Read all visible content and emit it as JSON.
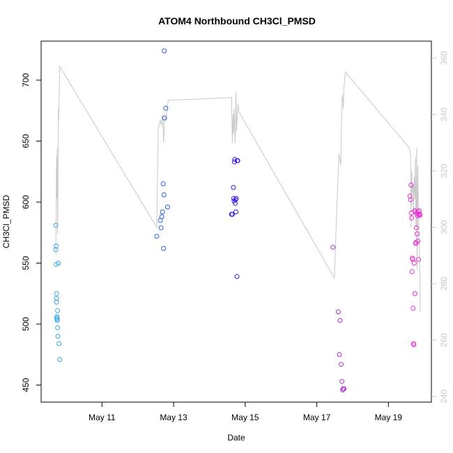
{
  "chart_data": {
    "type": "scatter",
    "title": "ATOM4 Northbound CH3Cl_PMSD",
    "xlabel": "Date",
    "ylabel": "CH3Cl_PMSD",
    "x_unit": "days (May of one year)",
    "xlim": [
      9.3,
      20.2
    ],
    "ylim": [
      436,
      732
    ],
    "y2lim": [
      238,
      366
    ],
    "x_ticks": [
      {
        "value": 11,
        "label": "May 11"
      },
      {
        "value": 13,
        "label": "May 13"
      },
      {
        "value": 15,
        "label": "May 15"
      },
      {
        "value": 17,
        "label": "May 17"
      },
      {
        "value": 19,
        "label": "May 19"
      }
    ],
    "y_ticks": [
      450,
      500,
      550,
      600,
      650,
      700
    ],
    "y2_ticks": [
      240,
      260,
      280,
      300,
      320,
      340,
      360
    ],
    "colors": {
      "line": "#c8c8c8",
      "group1": "#33a8e8",
      "group2": "#2a5fe0",
      "group3": "#3b10e6",
      "group4": "#b02ad8",
      "group5": "#ea2ad6",
      "frame": "#000000"
    },
    "series": [
      {
        "name": "altitude-trace",
        "axis": "right",
        "kind": "line",
        "x": [
          9.71,
          9.73,
          9.74,
          9.75,
          9.76,
          9.77,
          9.78,
          9.79,
          9.82,
          12.53,
          12.57,
          12.63,
          12.66,
          12.69,
          12.72,
          12.75,
          12.78,
          12.85,
          14.62,
          14.64,
          14.66,
          14.67,
          14.69,
          14.7,
          14.72,
          14.74,
          14.76,
          14.79,
          14.8,
          14.82,
          17.49,
          17.56,
          17.62,
          17.67,
          17.7,
          17.72,
          17.74,
          17.76,
          17.8,
          19.59,
          19.62,
          19.63,
          19.65,
          19.67,
          19.69,
          19.7,
          19.72,
          19.74,
          19.75,
          19.77,
          19.79,
          19.8,
          19.82,
          19.84,
          19.86,
          19.88,
          19.89
        ],
        "y": [
          290,
          325,
          310,
          328,
          298,
          312,
          342,
          338,
          357,
          300,
          335,
          338,
          336,
          340,
          330,
          339,
          338,
          345,
          346,
          330,
          340,
          333,
          342,
          336,
          330,
          348,
          334,
          342,
          344,
          341,
          282,
          308,
          326,
          322,
          345,
          347,
          342,
          350,
          355,
          328,
          325,
          300,
          320,
          312,
          315,
          305,
          318,
          310,
          325,
          300,
          328,
          285,
          322,
          305,
          295,
          280,
          270
        ]
      },
      {
        "name": "group-1",
        "color": "#33a8e8",
        "x": [
          9.71,
          9.71,
          9.72,
          9.72,
          9.73,
          9.73,
          9.73,
          9.74,
          9.74,
          9.75,
          9.75,
          9.76,
          9.76,
          9.77,
          9.78,
          9.8,
          9.82
        ],
        "y": [
          581,
          561,
          564,
          549,
          525,
          521,
          518,
          505,
          506,
          504,
          503,
          511,
          497,
          490,
          550,
          484,
          471
        ]
      },
      {
        "name": "group-2",
        "color": "#2a5fe0",
        "x": [
          12.53,
          12.63,
          12.65,
          12.67,
          12.69,
          12.71,
          12.72,
          12.73,
          12.74,
          12.75,
          12.78,
          12.83
        ],
        "y": [
          572,
          585,
          579,
          588,
          592,
          615,
          562,
          606,
          724,
          669,
          677,
          596
        ]
      },
      {
        "name": "group-3",
        "color": "#3b10e6",
        "x": [
          14.62,
          14.64,
          14.67,
          14.68,
          14.69,
          14.7,
          14.71,
          14.72,
          14.73,
          14.74,
          14.75,
          14.77,
          14.78,
          14.79
        ],
        "y": [
          590,
          590,
          612,
          603,
          601,
          633,
          635,
          599,
          602,
          592,
          603,
          539,
          634,
          634
        ]
      },
      {
        "name": "group-4",
        "color": "#b02ad8",
        "x": [
          17.45,
          17.6,
          17.63,
          17.65,
          17.68,
          17.7,
          17.72,
          17.74,
          17.76
        ],
        "y": [
          563,
          510,
          475,
          503,
          467,
          453,
          446,
          447,
          447
        ]
      },
      {
        "name": "group-5",
        "color": "#ea2ad6",
        "x": [
          19.6,
          19.62,
          19.63,
          19.64,
          19.65,
          19.66,
          19.67,
          19.68,
          19.69,
          19.7,
          19.71,
          19.72,
          19.73,
          19.74,
          19.75,
          19.76,
          19.77,
          19.78,
          19.79,
          19.8,
          19.81,
          19.82,
          19.83,
          19.84,
          19.85,
          19.86,
          19.87,
          19.88
        ],
        "y": [
          605,
          602,
          614,
          591,
          587,
          543,
          554,
          553,
          513,
          484,
          483,
          550,
          593,
          525,
          592,
          566,
          567,
          579,
          591,
          574,
          589,
          568,
          592,
          553,
          590,
          593,
          589,
          590
        ]
      }
    ]
  }
}
